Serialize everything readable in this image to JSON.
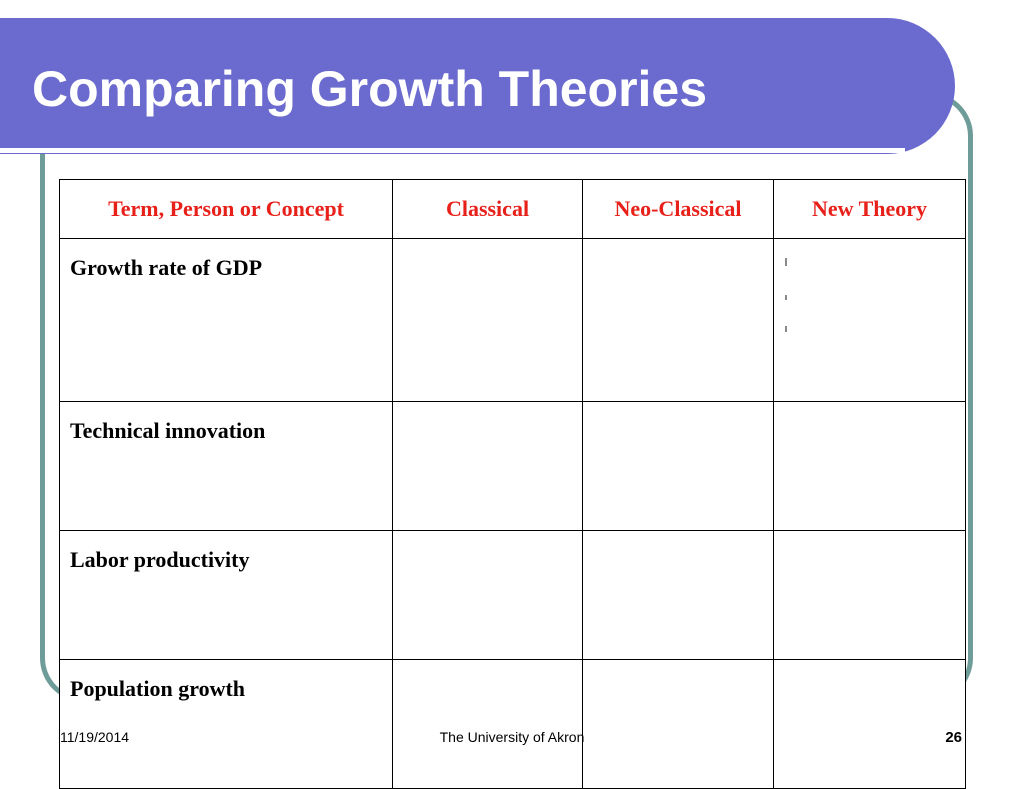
{
  "slide": {
    "title": "Comparing Growth Theories"
  },
  "table": {
    "headers": [
      "Term, Person or Concept",
      "Classical",
      "Neo-Classical",
      "New Theory"
    ],
    "rows": [
      {
        "label": "Growth rate of GDP",
        "classical": "",
        "neo_classical": "",
        "new_theory": ""
      },
      {
        "label": "Technical innovation",
        "classical": "",
        "neo_classical": "",
        "new_theory": ""
      },
      {
        "label": "Labor productivity",
        "classical": "",
        "neo_classical": "",
        "new_theory": ""
      },
      {
        "label": "Population growth",
        "classical": "",
        "neo_classical": "",
        "new_theory": ""
      }
    ]
  },
  "footer": {
    "date": "11/19/2014",
    "organization": "The University of Akron",
    "page_number": "26"
  },
  "colors": {
    "title_bar": "#6b6bcf",
    "frame": "#6e9c98",
    "header_text": "#e8201a"
  }
}
